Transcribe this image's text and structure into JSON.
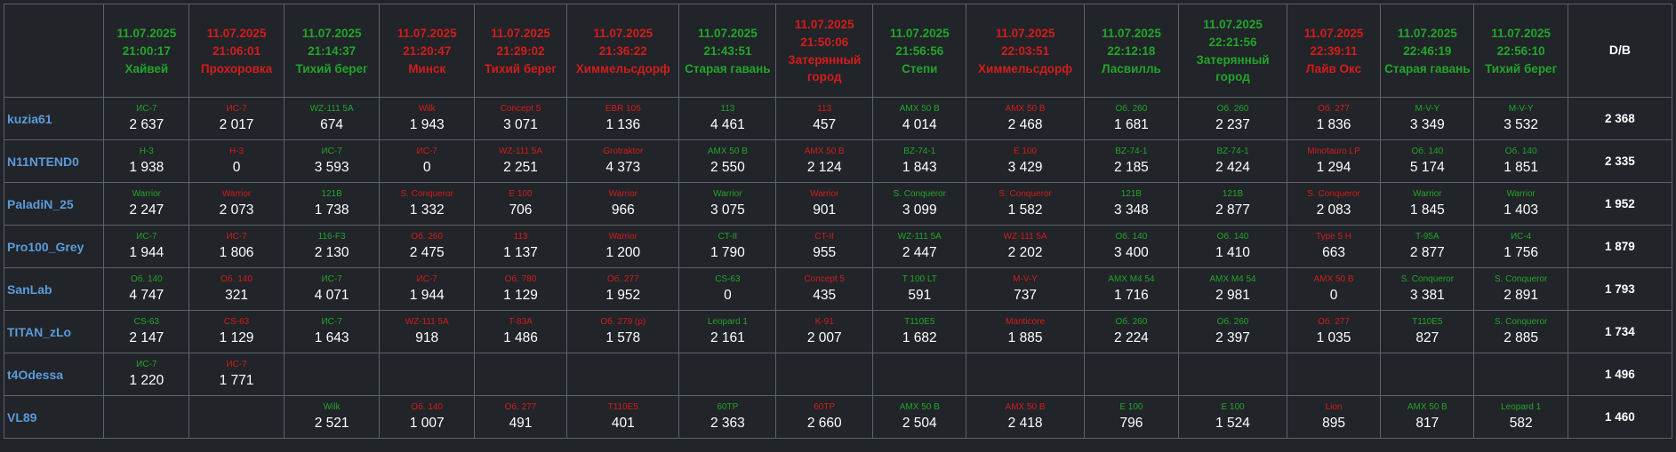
{
  "columns": [
    {
      "date": "11.07.2025",
      "time": "21:00:17",
      "map": "Хайвей",
      "result": "win"
    },
    {
      "date": "11.07.2025",
      "time": "21:06:01",
      "map": "Прохоровка",
      "result": "loss"
    },
    {
      "date": "11.07.2025",
      "time": "21:14:37",
      "map": "Тихий берег",
      "result": "win"
    },
    {
      "date": "11.07.2025",
      "time": "21:20:47",
      "map": "Минск",
      "result": "loss"
    },
    {
      "date": "11.07.2025",
      "time": "21:29:02",
      "map": "Тихий берег",
      "result": "loss"
    },
    {
      "date": "11.07.2025",
      "time": "21:36:22",
      "map": "Химмельсдорф",
      "result": "loss"
    },
    {
      "date": "11.07.2025",
      "time": "21:43:51",
      "map": "Старая гавань",
      "result": "win"
    },
    {
      "date": "11.07.2025",
      "time": "21:50:06",
      "map": "Затерянный город",
      "result": "loss"
    },
    {
      "date": "11.07.2025",
      "time": "21:56:56",
      "map": "Степи",
      "result": "win"
    },
    {
      "date": "11.07.2025",
      "time": "22:03:51",
      "map": "Химмельсдорф",
      "result": "loss"
    },
    {
      "date": "11.07.2025",
      "time": "22:12:18",
      "map": "Ласвилль",
      "result": "win"
    },
    {
      "date": "11.07.2025",
      "time": "22:21:56",
      "map": "Затерянный город",
      "result": "win"
    },
    {
      "date": "11.07.2025",
      "time": "22:39:11",
      "map": "Лайв Окс",
      "result": "loss"
    },
    {
      "date": "11.07.2025",
      "time": "22:46:19",
      "map": "Старая гавань",
      "result": "win"
    },
    {
      "date": "11.07.2025",
      "time": "22:56:10",
      "map": "Тихий берег",
      "result": "win"
    }
  ],
  "avg_header": "D/B",
  "players": [
    {
      "name": "kuzia61",
      "avg": "2 368",
      "cells": [
        {
          "tank": "ИС-7",
          "dmg": "2 637"
        },
        {
          "tank": "ИС-7",
          "dmg": "2 017"
        },
        {
          "tank": "WZ-111 5A",
          "dmg": "674"
        },
        {
          "tank": "Wilk",
          "dmg": "1 943"
        },
        {
          "tank": "Concept 5",
          "dmg": "3 071"
        },
        {
          "tank": "EBR 105",
          "dmg": "1 136"
        },
        {
          "tank": "113",
          "dmg": "4 461"
        },
        {
          "tank": "113",
          "dmg": "457"
        },
        {
          "tank": "AMX 50 B",
          "dmg": "4 014"
        },
        {
          "tank": "AMX 50 B",
          "dmg": "2 468"
        },
        {
          "tank": "Об. 260",
          "dmg": "1 681"
        },
        {
          "tank": "Об. 260",
          "dmg": "2 237"
        },
        {
          "tank": "Об. 277",
          "dmg": "1 836"
        },
        {
          "tank": "M-V-Y",
          "dmg": "3 349"
        },
        {
          "tank": "M-V-Y",
          "dmg": "3 532"
        }
      ]
    },
    {
      "name": "N11NTEND0",
      "avg": "2 335",
      "cells": [
        {
          "tank": "Н-3",
          "dmg": "1 938"
        },
        {
          "tank": "Н-3",
          "dmg": "0"
        },
        {
          "tank": "ИС-7",
          "dmg": "3 593"
        },
        {
          "tank": "ИС-7",
          "dmg": "0"
        },
        {
          "tank": "WZ-111 5A",
          "dmg": "2 251"
        },
        {
          "tank": "Grotraktor",
          "dmg": "4 373"
        },
        {
          "tank": "AMX 50 B",
          "dmg": "2 550"
        },
        {
          "tank": "AMX 50 B",
          "dmg": "2 124"
        },
        {
          "tank": "BZ-74-1",
          "dmg": "1 843"
        },
        {
          "tank": "E 100",
          "dmg": "3 429"
        },
        {
          "tank": "BZ-74-1",
          "dmg": "2 185"
        },
        {
          "tank": "BZ-74-1",
          "dmg": "2 424"
        },
        {
          "tank": "Minotauro LP",
          "dmg": "1 294"
        },
        {
          "tank": "Об. 140",
          "dmg": "5 174"
        },
        {
          "tank": "Об. 140",
          "dmg": "1 851"
        }
      ]
    },
    {
      "name": "PaladiN_25",
      "avg": "1 952",
      "cells": [
        {
          "tank": "Warrior",
          "dmg": "2 247"
        },
        {
          "tank": "Warrior",
          "dmg": "2 073"
        },
        {
          "tank": "121B",
          "dmg": "1 738"
        },
        {
          "tank": "S. Conqueror",
          "dmg": "1 332"
        },
        {
          "tank": "E 100",
          "dmg": "706"
        },
        {
          "tank": "Warrior",
          "dmg": "966"
        },
        {
          "tank": "Warrior",
          "dmg": "3 075"
        },
        {
          "tank": "Warrior",
          "dmg": "901"
        },
        {
          "tank": "S. Conqueror",
          "dmg": "3 099"
        },
        {
          "tank": "S. Conqueror",
          "dmg": "1 582"
        },
        {
          "tank": "121B",
          "dmg": "3 348"
        },
        {
          "tank": "121B",
          "dmg": "2 877"
        },
        {
          "tank": "S. Conqueror",
          "dmg": "2 083"
        },
        {
          "tank": "Warrior",
          "dmg": "1 845"
        },
        {
          "tank": "Warrior",
          "dmg": "1 403"
        }
      ]
    },
    {
      "name": "Pro100_Grey",
      "avg": "1 879",
      "cells": [
        {
          "tank": "ИС-7",
          "dmg": "1 944"
        },
        {
          "tank": "ИС-7",
          "dmg": "1 806"
        },
        {
          "tank": "116-F3",
          "dmg": "2 130"
        },
        {
          "tank": "Об. 260",
          "dmg": "2 475"
        },
        {
          "tank": "113",
          "dmg": "1 137"
        },
        {
          "tank": "Warrior",
          "dmg": "1 200"
        },
        {
          "tank": "CT-II",
          "dmg": "1 790"
        },
        {
          "tank": "CT-II",
          "dmg": "955"
        },
        {
          "tank": "WZ-111 5A",
          "dmg": "2 447"
        },
        {
          "tank": "WZ-111 5A",
          "dmg": "2 202"
        },
        {
          "tank": "Об. 140",
          "dmg": "3 400"
        },
        {
          "tank": "Об. 140",
          "dmg": "1 410"
        },
        {
          "tank": "Type 5 H",
          "dmg": "663"
        },
        {
          "tank": "T-95A",
          "dmg": "2 877"
        },
        {
          "tank": "ИС-4",
          "dmg": "1 756"
        }
      ]
    },
    {
      "name": "SanLab",
      "avg": "1 793",
      "cells": [
        {
          "tank": "Об. 140",
          "dmg": "4 747"
        },
        {
          "tank": "Об. 140",
          "dmg": "321"
        },
        {
          "tank": "ИС-7",
          "dmg": "4 071"
        },
        {
          "tank": "ИС-7",
          "dmg": "1 944"
        },
        {
          "tank": "Об. 780",
          "dmg": "1 129"
        },
        {
          "tank": "Об. 277",
          "dmg": "1 952"
        },
        {
          "tank": "CS-63",
          "dmg": "0"
        },
        {
          "tank": "Concept 5",
          "dmg": "435"
        },
        {
          "tank": "T 100 LT",
          "dmg": "591"
        },
        {
          "tank": "M-V-Y",
          "dmg": "737"
        },
        {
          "tank": "AMX M4 54",
          "dmg": "1 716"
        },
        {
          "tank": "AMX M4 54",
          "dmg": "2 981"
        },
        {
          "tank": "AMX 50 B",
          "dmg": "0"
        },
        {
          "tank": "S. Conqueror",
          "dmg": "3 381"
        },
        {
          "tank": "S. Conqueror",
          "dmg": "2 891"
        }
      ]
    },
    {
      "name": "TITAN_zLo",
      "avg": "1 734",
      "cells": [
        {
          "tank": "CS-63",
          "dmg": "2 147"
        },
        {
          "tank": "CS-63",
          "dmg": "1 129"
        },
        {
          "tank": "ИС-7",
          "dmg": "1 643"
        },
        {
          "tank": "WZ-111 5A",
          "dmg": "918"
        },
        {
          "tank": "T-83A",
          "dmg": "1 486"
        },
        {
          "tank": "Об. 279 (р)",
          "dmg": "1 578"
        },
        {
          "tank": "Leopard 1",
          "dmg": "2 161"
        },
        {
          "tank": "K-91",
          "dmg": "2 007"
        },
        {
          "tank": "T110E5",
          "dmg": "1 682"
        },
        {
          "tank": "Manticore",
          "dmg": "1 885"
        },
        {
          "tank": "Об. 260",
          "dmg": "2 224"
        },
        {
          "tank": "Об. 260",
          "dmg": "2 397"
        },
        {
          "tank": "Об. 277",
          "dmg": "1 035"
        },
        {
          "tank": "T110E5",
          "dmg": "827"
        },
        {
          "tank": "S. Conqueror",
          "dmg": "2 885"
        }
      ]
    },
    {
      "name": "t4Odessa",
      "avg": "1 496",
      "cells": [
        {
          "tank": "ИС-7",
          "dmg": "1 220"
        },
        {
          "tank": "ИС-7",
          "dmg": "1 771"
        },
        null,
        null,
        null,
        null,
        null,
        null,
        null,
        null,
        null,
        null,
        null,
        null,
        null
      ]
    },
    {
      "name": "VL89",
      "avg": "1 460",
      "cells": [
        null,
        null,
        {
          "tank": "Wilk",
          "dmg": "2 521"
        },
        {
          "tank": "Об. 140",
          "dmg": "1 007"
        },
        {
          "tank": "Об. 277",
          "dmg": "491"
        },
        {
          "tank": "T110E5",
          "dmg": "401"
        },
        {
          "tank": "60TP",
          "dmg": "2 363"
        },
        {
          "tank": "60TP",
          "dmg": "2 660"
        },
        {
          "tank": "AMX 50 B",
          "dmg": "2 504"
        },
        {
          "tank": "AMX 50 B",
          "dmg": "2 418"
        },
        {
          "tank": "E 100",
          "dmg": "796"
        },
        {
          "tank": "E 100",
          "dmg": "1 524"
        },
        {
          "tank": "Lion",
          "dmg": "895"
        },
        {
          "tank": "AMX 50 B",
          "dmg": "817"
        },
        {
          "tank": "Leopard 1",
          "dmg": "582"
        }
      ]
    }
  ],
  "colors": {
    "win": "#22a52a",
    "loss": "#d41c1c",
    "player": "#5b9bdc",
    "background": "#212428",
    "border": "#5e636a"
  }
}
